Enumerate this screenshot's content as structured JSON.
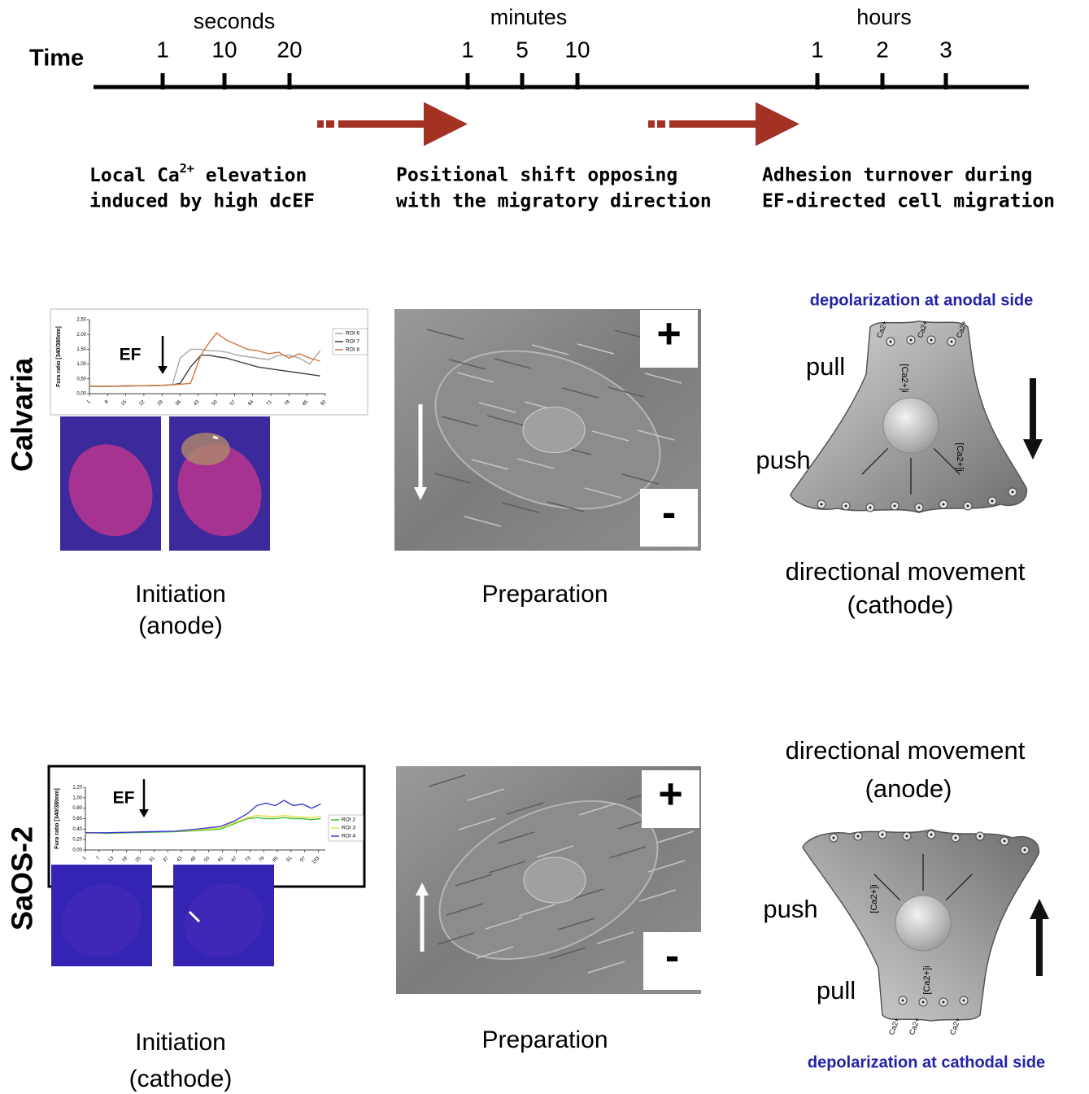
{
  "timeline": {
    "label": "Time",
    "groups": [
      {
        "unit": "seconds",
        "ticks": [
          1,
          10,
          20
        ]
      },
      {
        "unit": "minutes",
        "ticks": [
          1,
          5,
          10
        ]
      },
      {
        "unit": "hours",
        "ticks": [
          1,
          2,
          3
        ]
      }
    ]
  },
  "stages": [
    {
      "lines": [
        {
          "before": "Local Ca",
          "sup": "2+",
          "after": " elevation"
        },
        "induced by high dcEF"
      ]
    },
    {
      "lines": [
        "Positional shift opposing",
        "with the migratory direction"
      ]
    },
    {
      "lines": [
        "Adhesion turnover during",
        "EF-directed cell  migration"
      ]
    }
  ],
  "rows": [
    {
      "label": "Calvaria",
      "initiation": {
        "title": "Initiation",
        "subtitle": "(anode)",
        "ef": "EF",
        "inset": {
          "y_label": "Fura ratio [340/380nm]",
          "xlim": [
            1,
            92
          ],
          "ylim": [
            0,
            2.5
          ],
          "yticks": [
            {
              "value": 0,
              "label": "0,00"
            },
            {
              "value": 0.5,
              "label": "0,50"
            },
            {
              "value": 1,
              "label": "1,00"
            },
            {
              "value": 1.5,
              "label": "1,50"
            },
            {
              "value": 2,
              "label": "2,00"
            },
            {
              "value": 2.5,
              "label": "2,50"
            }
          ],
          "xticks": [
            1,
            8,
            15,
            22,
            29,
            36,
            43,
            50,
            57,
            64,
            71,
            78,
            85,
            92
          ],
          "x": [
            1,
            8,
            15,
            22,
            29,
            33,
            36,
            40,
            44,
            47,
            50,
            54,
            58,
            62,
            66,
            70,
            74,
            78,
            82,
            86,
            90
          ],
          "series": [
            {
              "name": "ROI 6",
              "color": "#a8a8a8",
              "values": [
                0.25,
                0.25,
                0.26,
                0.27,
                0.28,
                0.3,
                1.2,
                1.5,
                1.5,
                1.45,
                1.45,
                1.4,
                1.3,
                1.25,
                1.2,
                1.15,
                1.3,
                1.3,
                1.2,
                1.0,
                1.45
              ]
            },
            {
              "name": "ROI 7",
              "color": "#404040",
              "values": [
                0.25,
                0.25,
                0.26,
                0.27,
                0.28,
                0.3,
                0.35,
                0.9,
                1.3,
                1.3,
                1.25,
                1.2,
                1.1,
                1.0,
                0.9,
                0.85,
                0.8,
                0.75,
                0.7,
                0.65,
                0.6
              ]
            },
            {
              "name": "ROI 8",
              "color": "#d2773f",
              "values": [
                0.25,
                0.25,
                0.26,
                0.27,
                0.28,
                0.3,
                0.32,
                0.35,
                1.3,
                1.7,
                2.05,
                1.8,
                1.65,
                1.5,
                1.45,
                1.35,
                1.4,
                1.2,
                1.35,
                1.2,
                1.1
              ]
            }
          ]
        }
      },
      "preparation": {
        "title": "Preparation",
        "plus": "+",
        "minus": "-"
      },
      "movement": {
        "depolarization": "depolarization at anodal side",
        "pull": "pull",
        "push": "push",
        "title": "directional movement",
        "subtitle": "(cathode)",
        "ion": "Ca2+",
        "concentration": "[Ca2+]i"
      }
    },
    {
      "label": "SaOS-2",
      "initiation": {
        "title": "Initiation",
        "subtitle": "(cathode)",
        "ef": "EF",
        "inset": {
          "y_label": "Fura ratio [340/380nm]",
          "xlim": [
            1,
            106
          ],
          "ylim": [
            0,
            1.2
          ],
          "yticks": [
            {
              "value": 0,
              "label": "0,00"
            },
            {
              "value": 0.2,
              "label": "0,20"
            },
            {
              "value": 0.4,
              "label": "0,40"
            },
            {
              "value": 0.6,
              "label": "0,60"
            },
            {
              "value": 0.8,
              "label": "0,80"
            },
            {
              "value": 1,
              "label": "1,00"
            },
            {
              "value": 1.2,
              "label": "1,20"
            }
          ],
          "xticks": [
            1,
            7,
            13,
            19,
            25,
            31,
            37,
            43,
            49,
            55,
            61,
            67,
            73,
            79,
            85,
            91,
            97,
            103
          ],
          "x": [
            1,
            10,
            20,
            30,
            40,
            50,
            60,
            66,
            72,
            76,
            80,
            84,
            88,
            92,
            96,
            100,
            104
          ],
          "series": [
            {
              "name": "ROI 2",
              "color": "#3cc23c",
              "values": [
                0.33,
                0.32,
                0.33,
                0.34,
                0.35,
                0.37,
                0.4,
                0.5,
                0.6,
                0.62,
                0.6,
                0.6,
                0.62,
                0.6,
                0.6,
                0.58,
                0.6
              ]
            },
            {
              "name": "ROI 3",
              "color": "#e6e040",
              "values": [
                0.32,
                0.33,
                0.34,
                0.35,
                0.36,
                0.38,
                0.42,
                0.52,
                0.62,
                0.66,
                0.65,
                0.64,
                0.66,
                0.64,
                0.63,
                0.62,
                0.64
              ]
            },
            {
              "name": "ROI 4",
              "color": "#3a3ad0",
              "values": [
                0.33,
                0.33,
                0.34,
                0.35,
                0.36,
                0.4,
                0.45,
                0.55,
                0.7,
                0.85,
                0.9,
                0.85,
                0.95,
                0.85,
                0.88,
                0.8,
                0.88
              ]
            }
          ]
        }
      },
      "preparation": {
        "title": "Preparation",
        "plus": "+",
        "minus": "-"
      },
      "movement": {
        "depolarization": "depolarization at cathodal side",
        "pull": "pull",
        "push": "push",
        "title": "directional movement",
        "subtitle": "(anode)",
        "ion": "Ca2+",
        "concentration": "[Ca2+]i"
      }
    }
  ]
}
